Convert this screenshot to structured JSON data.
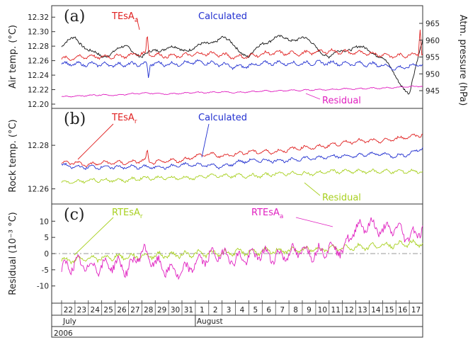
{
  "chart_data": [
    {
      "panel": "(a)",
      "type": "line",
      "ylabel": "Air temp. (°C)",
      "ylabel_right": "Atm. pressure (hPa)",
      "ylim": [
        12.2,
        12.33
      ],
      "ylim_right": [
        941,
        969
      ],
      "yticks": [
        "12.20",
        "12.22",
        "12.24",
        "12.26",
        "12.28",
        "12.30",
        "12.32"
      ],
      "yticks_right": [
        "945",
        "950",
        "955",
        "960",
        "965"
      ],
      "series": [
        {
          "name": "TEsA",
          "name_subscript": "a",
          "color": "#e02020",
          "x": [
            0,
            1,
            2,
            3,
            4,
            5,
            6,
            7,
            8,
            9,
            10,
            11,
            12,
            13,
            14,
            15,
            16,
            17,
            18,
            19,
            20,
            21,
            22,
            23,
            24,
            25,
            26,
            27
          ],
          "y": [
            12.262,
            12.264,
            12.266,
            12.265,
            12.266,
            12.267,
            12.27,
            12.268,
            12.266,
            12.267,
            12.269,
            12.27,
            12.268,
            12.265,
            12.266,
            12.269,
            12.271,
            12.27,
            12.27,
            12.272,
            12.273,
            12.272,
            12.271,
            12.27,
            12.268,
            12.266,
            12.268,
            12.27
          ],
          "spikes": [
            {
              "x": 6.4,
              "y": 12.3
            },
            {
              "x": 26.8,
              "y": 12.305
            }
          ]
        },
        {
          "name": "Calculated",
          "color": "#2230d0",
          "x": [
            0,
            1,
            2,
            3,
            4,
            5,
            6,
            7,
            8,
            9,
            10,
            11,
            12,
            13,
            14,
            15,
            16,
            17,
            18,
            19,
            20,
            21,
            22,
            23,
            24,
            25,
            26,
            27
          ],
          "y": [
            12.256,
            12.255,
            12.255,
            12.255,
            12.254,
            12.255,
            12.255,
            12.256,
            12.255,
            12.256,
            12.258,
            12.257,
            12.255,
            12.251,
            12.253,
            12.256,
            12.257,
            12.256,
            12.256,
            12.257,
            12.257,
            12.256,
            12.256,
            12.255,
            12.254,
            12.249,
            12.252,
            12.256
          ],
          "spikes": [
            {
              "x": 6.5,
              "y": 12.235
            }
          ]
        },
        {
          "name": "Residual",
          "color": "#e020c0",
          "x": [
            0,
            1,
            2,
            3,
            4,
            5,
            6,
            7,
            8,
            9,
            10,
            11,
            12,
            13,
            14,
            15,
            16,
            17,
            18,
            19,
            20,
            21,
            22,
            23,
            24,
            25,
            26,
            27
          ],
          "y": [
            12.21,
            12.211,
            12.212,
            12.213,
            12.212,
            12.214,
            12.215,
            12.215,
            12.214,
            12.215,
            12.216,
            12.216,
            12.217,
            12.216,
            12.217,
            12.218,
            12.218,
            12.219,
            12.219,
            12.22,
            12.22,
            12.221,
            12.221,
            12.222,
            12.222,
            12.223,
            12.224,
            12.225
          ]
        },
        {
          "name": "Atm. pressure",
          "axis": "right",
          "color": "#111111",
          "x": [
            0,
            1,
            2,
            3,
            4,
            5,
            6,
            7,
            8,
            9,
            10,
            11,
            12,
            13,
            14,
            15,
            16,
            17,
            18,
            19,
            20,
            21,
            22,
            23,
            24,
            25,
            26,
            27
          ],
          "y": [
            958,
            961,
            957,
            955,
            957,
            958,
            955,
            957,
            958,
            957,
            958,
            959,
            961,
            958,
            955,
            959,
            961,
            960,
            961,
            958,
            955,
            957,
            958,
            957,
            955,
            949,
            944,
            960
          ]
        }
      ],
      "annotations": [
        {
          "text": "TEsA",
          "sub": "a",
          "color": "#e02020"
        },
        {
          "text": "Calculated",
          "color": "#2230d0"
        },
        {
          "text": "Residual",
          "color": "#e020c0"
        }
      ]
    },
    {
      "panel": "(b)",
      "type": "line",
      "ylabel": "Rock temp. (°C)",
      "ylim": [
        12.255,
        12.295
      ],
      "yticks": [
        "12.26",
        "12.28"
      ],
      "series": [
        {
          "name": "TEsA",
          "name_subscript": "r",
          "color": "#e02020",
          "x": [
            0,
            1,
            2,
            3,
            4,
            5,
            6,
            7,
            8,
            9,
            10,
            11,
            12,
            13,
            14,
            15,
            16,
            17,
            18,
            19,
            20,
            21,
            22,
            23,
            24,
            25,
            26,
            27
          ],
          "y": [
            12.272,
            12.272,
            12.271,
            12.272,
            12.272,
            12.272,
            12.273,
            12.272,
            12.273,
            12.273,
            12.275,
            12.276,
            12.275,
            12.276,
            12.277,
            12.277,
            12.277,
            12.278,
            12.279,
            12.279,
            12.28,
            12.281,
            12.282,
            12.282,
            12.282,
            12.283,
            12.284,
            12.285
          ],
          "spikes": [
            {
              "x": 6.4,
              "y": 12.279
            }
          ]
        },
        {
          "name": "Calculated",
          "color": "#2230d0",
          "x": [
            0,
            1,
            2,
            3,
            4,
            5,
            6,
            7,
            8,
            9,
            10,
            11,
            12,
            13,
            14,
            15,
            16,
            17,
            18,
            19,
            20,
            21,
            22,
            23,
            24,
            25,
            26,
            27
          ],
          "y": [
            12.271,
            12.27,
            12.27,
            12.27,
            12.27,
            12.27,
            12.27,
            12.27,
            12.27,
            12.271,
            12.271,
            12.271,
            12.27,
            12.272,
            12.273,
            12.273,
            12.273,
            12.273,
            12.274,
            12.274,
            12.275,
            12.275,
            12.275,
            12.276,
            12.276,
            12.275,
            12.276,
            12.279
          ]
        },
        {
          "name": "Residual",
          "color": "#a8d020",
          "x": [
            0,
            1,
            2,
            3,
            4,
            5,
            6,
            7,
            8,
            9,
            10,
            11,
            12,
            13,
            14,
            15,
            16,
            17,
            18,
            19,
            20,
            21,
            22,
            23,
            24,
            25,
            26,
            27
          ],
          "y": [
            12.263,
            12.263,
            12.264,
            12.264,
            12.264,
            12.264,
            12.265,
            12.265,
            12.265,
            12.265,
            12.265,
            12.266,
            12.266,
            12.266,
            12.266,
            12.266,
            12.267,
            12.267,
            12.267,
            12.267,
            12.268,
            12.268,
            12.268,
            12.268,
            12.268,
            12.268,
            12.268,
            12.268
          ]
        }
      ],
      "annotations": [
        {
          "text": "TEsA",
          "sub": "r",
          "color": "#e02020"
        },
        {
          "text": "Calculated",
          "color": "#2230d0"
        },
        {
          "text": "Residual",
          "color": "#a8d020"
        }
      ]
    },
    {
      "panel": "(c)",
      "type": "line",
      "ylabel": "Residual (10⁻³ °C)",
      "ylim": [
        -14,
        14
      ],
      "yticks": [
        "-10",
        "-5",
        "0",
        "5",
        "10"
      ],
      "reference_line": 0,
      "series": [
        {
          "name": "RTEsA",
          "name_subscript": "r",
          "color": "#a8d020",
          "x": [
            0,
            1,
            2,
            3,
            4,
            5,
            6,
            7,
            8,
            9,
            10,
            11,
            12,
            13,
            14,
            15,
            16,
            17,
            18,
            19,
            20,
            21,
            22,
            23,
            24,
            25,
            26,
            27
          ],
          "y": [
            -2,
            -2,
            -1.5,
            -1.5,
            -1,
            -1,
            -0.8,
            -0.5,
            -0.5,
            -0.3,
            0,
            0,
            0.2,
            0.4,
            0.5,
            0.6,
            0.8,
            1,
            1.2,
            1.3,
            1.5,
            1.8,
            2,
            2.2,
            2.5,
            2.8,
            3,
            3.2
          ]
        },
        {
          "name": "RTEsA",
          "name_subscript": "a",
          "color": "#e020c0",
          "x": [
            0,
            1,
            2,
            3,
            4,
            5,
            6,
            7,
            8,
            9,
            10,
            11,
            12,
            13,
            14,
            15,
            16,
            17,
            18,
            19,
            20,
            21,
            22,
            23,
            24,
            25,
            26,
            27
          ],
          "y": [
            -5,
            -3,
            -4,
            -4,
            -3,
            -5,
            1,
            -3,
            -5,
            -6,
            -3,
            -1,
            0,
            -2,
            -1,
            0,
            -1,
            0,
            1,
            0,
            2,
            1,
            8,
            9,
            7,
            8,
            5,
            8
          ]
        }
      ],
      "annotations": [
        {
          "text": "RTEsA",
          "sub": "r",
          "color": "#a8d020"
        },
        {
          "text": "RTEsA",
          "sub": "a",
          "color": "#e020c0"
        }
      ]
    }
  ],
  "time_axis": {
    "days": [
      "22",
      "23",
      "24",
      "25",
      "26",
      "27",
      "28",
      "29",
      "30",
      "31",
      "1",
      "2",
      "3",
      "4",
      "5",
      "6",
      "7",
      "8",
      "9",
      "10",
      "11",
      "12",
      "13",
      "14",
      "15",
      "16",
      "17"
    ],
    "months": [
      {
        "label": "July",
        "start_index": 0
      },
      {
        "label": "August",
        "start_index": 10
      }
    ],
    "year": "2006"
  }
}
